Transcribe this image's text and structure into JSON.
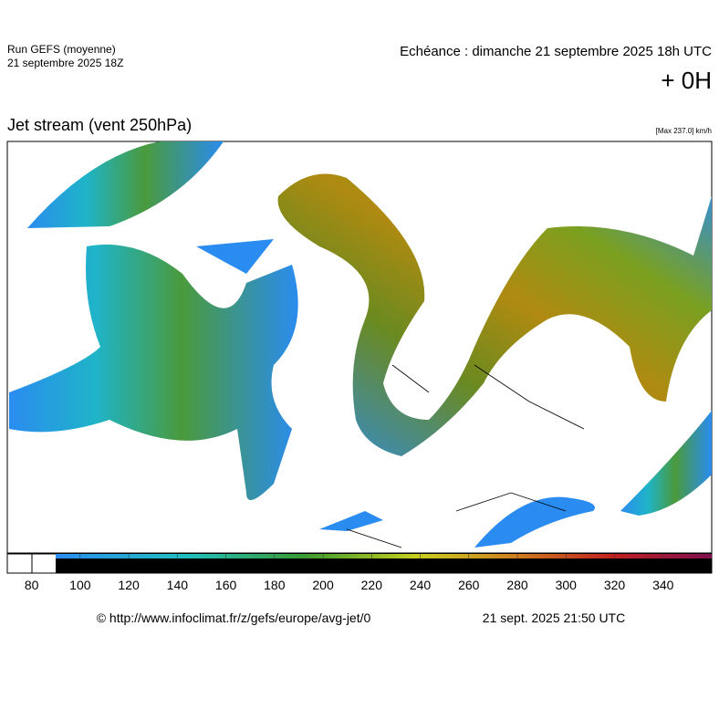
{
  "header": {
    "run": "Run GEFS (moyenne)",
    "run_date": "21 septembre 2025 18Z",
    "forecast": "Echéance : dimanche 21 septembre 2025 18h UTC",
    "lead": "+ 0H"
  },
  "map": {
    "title": "Jet stream (vent 250hPa)",
    "max_label": "[Max 237.0] km/h"
  },
  "colorbar": {
    "xlim": [
      70,
      360
    ],
    "ticks": [
      80,
      100,
      120,
      140,
      160,
      180,
      200,
      220,
      240,
      260,
      280,
      300,
      320,
      340
    ]
  },
  "footer": {
    "source": "© http://www.infoclimat.fr/z/gefs/europe/avg-jet/0",
    "timestamp": "21 sept. 2025 21:50 UTC"
  }
}
